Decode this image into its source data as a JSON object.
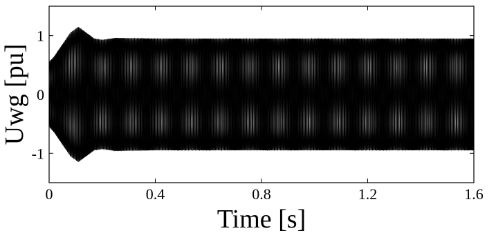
{
  "chart_data": {
    "type": "line",
    "title": "",
    "xlabel": "Time [s]",
    "ylabel": "Uwg [pu]",
    "xlim": [
      0,
      1.6
    ],
    "ylim": [
      -1.5,
      1.5
    ],
    "xticks": [
      0,
      0.4,
      0.8,
      1.2,
      1.6
    ],
    "xtick_labels": [
      "0",
      "0.4",
      "0.8",
      "1.2",
      "1.6"
    ],
    "yticks": [
      -1,
      0,
      1
    ],
    "ytick_labels": [
      "-1",
      "0",
      "1"
    ],
    "grid": false,
    "legend": "none",
    "series": [
      {
        "description": "three-phase oscillating voltage waveforms (dense, appear as filled band)",
        "color": "#000000",
        "envelope": {
          "t": [
            0,
            0.02,
            0.05,
            0.08,
            0.11,
            0.14,
            0.17,
            0.2,
            0.25,
            0.4,
            0.8,
            1.2,
            1.6
          ],
          "upper": [
            0.55,
            0.65,
            0.85,
            1.05,
            1.15,
            1.05,
            0.95,
            0.93,
            0.96,
            0.95,
            0.95,
            0.95,
            0.95
          ],
          "lower": [
            -0.55,
            -0.65,
            -0.85,
            -1.05,
            -1.15,
            -1.05,
            -0.95,
            -0.93,
            -0.96,
            -0.95,
            -0.95,
            -0.95,
            -0.95
          ]
        }
      }
    ]
  }
}
